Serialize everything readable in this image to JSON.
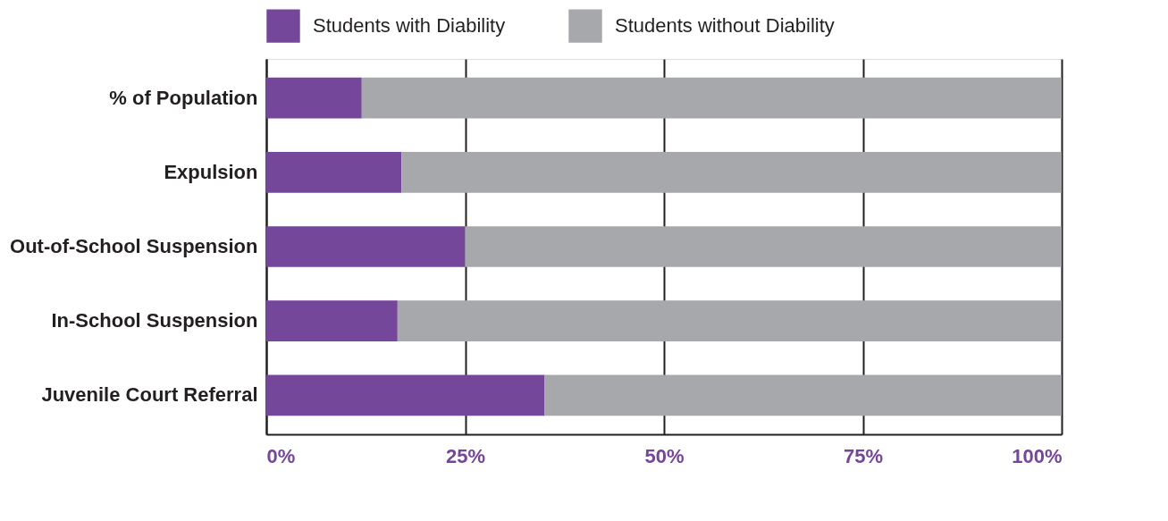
{
  "chart_data": {
    "type": "bar",
    "orientation": "horizontal",
    "stacked": true,
    "categories": [
      "% of Population",
      "Expulsion",
      "Out-of-School Suspension",
      "In-School Suspension",
      "Juvenile Court Referral"
    ],
    "series": [
      {
        "name": "Students with Diability",
        "color": "#74479b",
        "values": [
          12,
          17,
          25,
          16.5,
          35
        ]
      },
      {
        "name": "Students without Diability",
        "color": "#a7a8ab",
        "values": [
          88,
          83,
          75,
          83.5,
          65
        ]
      }
    ],
    "xlim": [
      0,
      100
    ],
    "xticks": [
      {
        "value": 0,
        "label": "0%"
      },
      {
        "value": 25,
        "label": "25%"
      },
      {
        "value": 50,
        "label": "50%"
      },
      {
        "value": 75,
        "label": "75%"
      },
      {
        "value": 100,
        "label": "100%"
      }
    ],
    "grid": "x",
    "legend": "top"
  }
}
